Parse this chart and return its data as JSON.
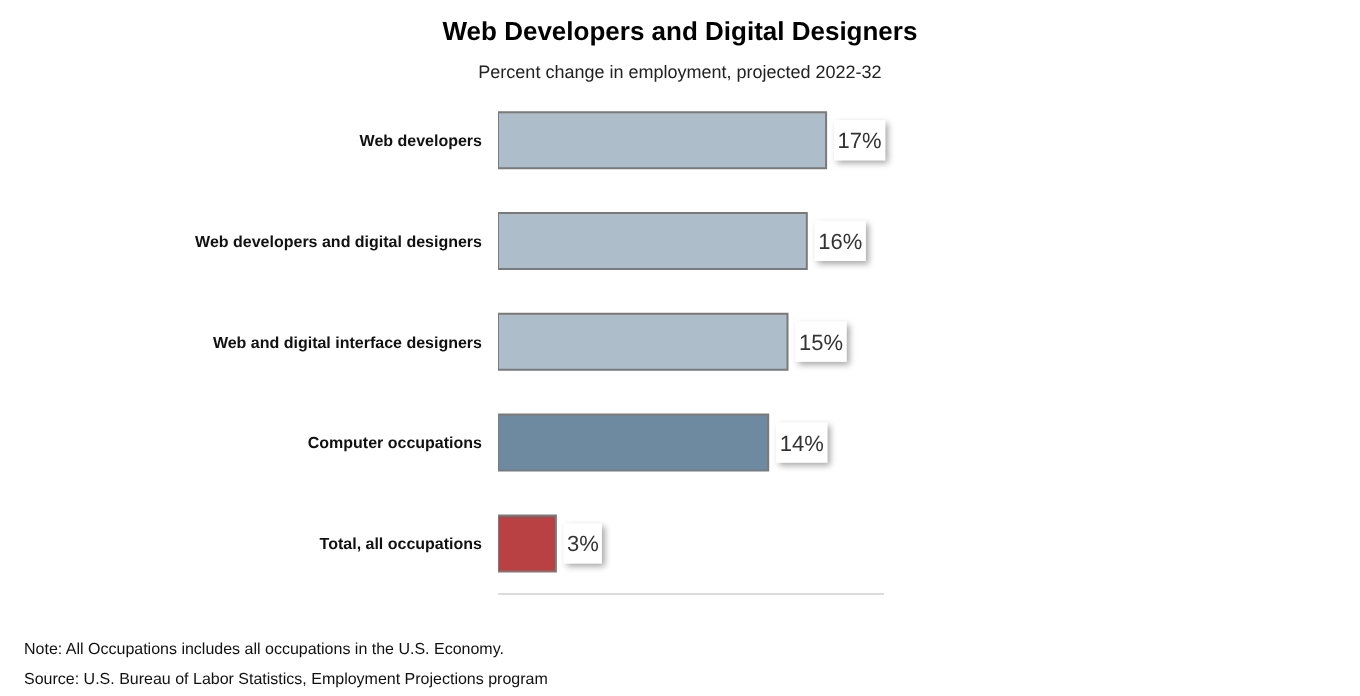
{
  "chart_data": {
    "type": "bar",
    "orientation": "horizontal",
    "title": "Web Developers and Digital Designers",
    "subtitle": "Percent change in employment, projected 2022-32",
    "categories": [
      "Web developers",
      "Web developers and digital designers",
      "Web and digital interface designers",
      "Computer occupations",
      "Total, all occupations"
    ],
    "values": [
      17,
      16,
      15,
      14,
      3
    ],
    "colors": [
      "#adbdca",
      "#adbdca",
      "#adbdca",
      "#6d8aa0",
      "#b94043"
    ],
    "value_labels": [
      "17%",
      "16%",
      "15%",
      "14%",
      "3%"
    ],
    "xlim": [
      0,
      20
    ],
    "tick_labels": "y",
    "annotations": [
      "Note: All Occupations includes all occupations in the U.S. Economy.",
      "Source: U.S. Bureau of Labor Statistics, Employment Projections program"
    ]
  }
}
